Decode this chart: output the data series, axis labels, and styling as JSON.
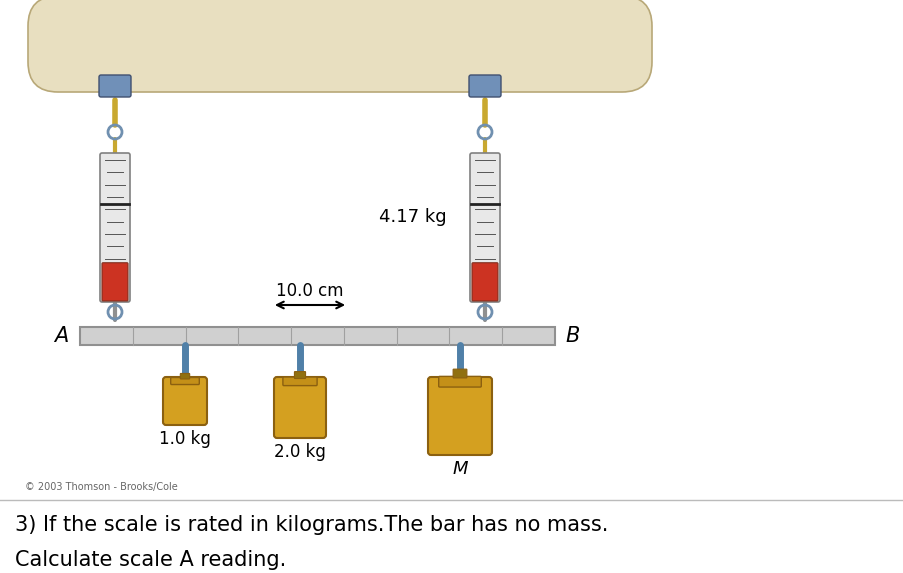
{
  "bg_color": "#ffffff",
  "ceiling_color": "#e8dfc0",
  "ceiling_border": "#b8a878",
  "bar_color": "#d0d0d0",
  "bar_border": "#909090",
  "scale_body_color": "#d8d8d8",
  "scale_red": "#cc3322",
  "chain_color": "#c8a830",
  "hook_color": "#7090b0",
  "weight_gold": "#d4a020",
  "weight_dark": "#8b6010",
  "weight_mid": "#c49018",
  "blue_conn": "#5080a8",
  "label_417": "4.17 kg",
  "label_10cm": "10.0 cm",
  "label_A": "A",
  "label_B": "B",
  "label_1kg": "1.0 kg",
  "label_2kg": "2.0 kg",
  "label_M": "M",
  "copyright": "© 2003 Thomson - Brooks/Cole",
  "q_line1": "3) If the scale is rated in kilograms.The bar has no mass.",
  "q_line2": "Calculate scale A reading.",
  "fig_w": 9.04,
  "fig_h": 5.73,
  "dpi": 100
}
